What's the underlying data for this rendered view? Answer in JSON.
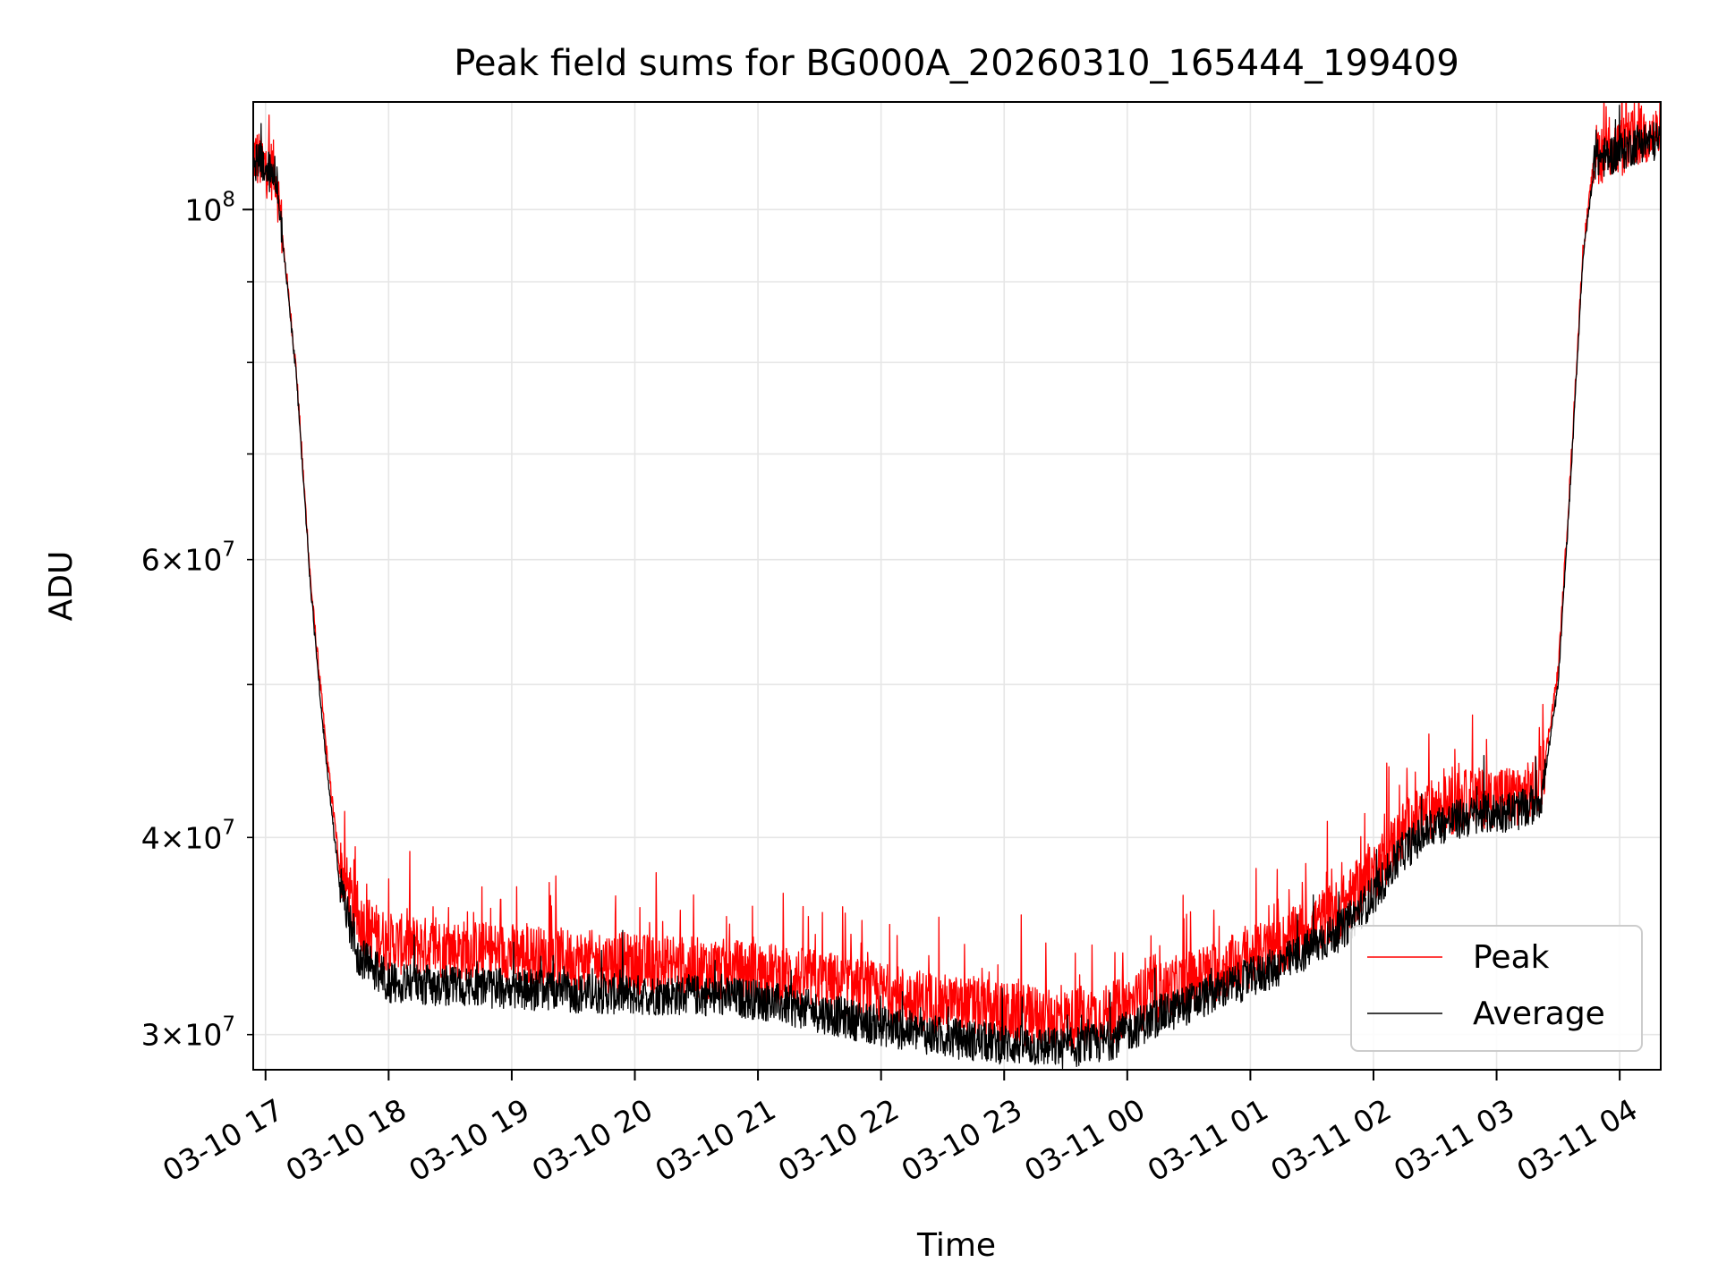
{
  "chart_data": {
    "type": "line",
    "title": "Peak field sums for BG000A_20260310_165444_199409",
    "xlabel": "Time",
    "ylabel": "ADU",
    "yscale": "log",
    "grid": true,
    "legend_position": "lower-right",
    "x_range": [
      "2026-03-10 16:54",
      "2026-03-11 04:20"
    ],
    "ylim": [
      28500000,
      117000000
    ],
    "x_ticks": [
      {
        "value": "2026-03-10 17:00",
        "label": "03-10 17"
      },
      {
        "value": "2026-03-10 18:00",
        "label": "03-10 18"
      },
      {
        "value": "2026-03-10 19:00",
        "label": "03-10 19"
      },
      {
        "value": "2026-03-10 20:00",
        "label": "03-10 20"
      },
      {
        "value": "2026-03-10 21:00",
        "label": "03-10 21"
      },
      {
        "value": "2026-03-10 22:00",
        "label": "03-10 22"
      },
      {
        "value": "2026-03-10 23:00",
        "label": "03-10 23"
      },
      {
        "value": "2026-03-11 00:00",
        "label": "03-11 00"
      },
      {
        "value": "2026-03-11 01:00",
        "label": "03-11 01"
      },
      {
        "value": "2026-03-11 02:00",
        "label": "03-11 02"
      },
      {
        "value": "2026-03-11 03:00",
        "label": "03-11 03"
      },
      {
        "value": "2026-03-11 04:00",
        "label": "03-11 04"
      }
    ],
    "y_ticks_major": [
      {
        "value": 100000000,
        "mantissa": "",
        "exponent": "8"
      }
    ],
    "y_ticks_minor": [
      {
        "value": 30000000,
        "mantissa": "3",
        "exponent": "7"
      },
      {
        "value": 40000000,
        "mantissa": "4",
        "exponent": "7"
      },
      {
        "value": 50000000,
        "mantissa": "",
        "exponent": ""
      },
      {
        "value": 60000000,
        "mantissa": "6",
        "exponent": "7"
      },
      {
        "value": 70000000,
        "mantissa": "",
        "exponent": ""
      },
      {
        "value": 80000000,
        "mantissa": "",
        "exponent": ""
      },
      {
        "value": 90000000,
        "mantissa": "",
        "exponent": ""
      }
    ],
    "series": [
      {
        "name": "Peak",
        "color": "#ff0000",
        "noise": 0.045,
        "spike_rate": 0.06,
        "points": [
          [
            "2026-03-10 16:54",
            108500000
          ],
          [
            "2026-03-10 17:00",
            106500000
          ],
          [
            "2026-03-10 17:05",
            105800000
          ],
          [
            "2026-03-10 17:15",
            79000000
          ],
          [
            "2026-03-10 17:22",
            58000000
          ],
          [
            "2026-03-10 17:30",
            45000000
          ],
          [
            "2026-03-10 17:36",
            38500000
          ],
          [
            "2026-03-10 17:45",
            35500000
          ],
          [
            "2026-03-10 18:00",
            34300000
          ],
          [
            "2026-03-10 18:30",
            34000000
          ],
          [
            "2026-03-10 19:00",
            33800000
          ],
          [
            "2026-03-10 19:30",
            33500000
          ],
          [
            "2026-03-10 20:00",
            33300000
          ],
          [
            "2026-03-10 20:30",
            33100000
          ],
          [
            "2026-03-10 21:00",
            32900000
          ],
          [
            "2026-03-10 21:30",
            32500000
          ],
          [
            "2026-03-10 22:00",
            31900000
          ],
          [
            "2026-03-10 22:30",
            31400000
          ],
          [
            "2026-03-10 23:00",
            31000000
          ],
          [
            "2026-03-10 23:30",
            30700000
          ],
          [
            "2026-03-10 23:50",
            30900000
          ],
          [
            "2026-03-11 00:15",
            31900000
          ],
          [
            "2026-03-11 00:45",
            33000000
          ],
          [
            "2026-03-11 01:15",
            34200000
          ],
          [
            "2026-03-11 01:45",
            36200000
          ],
          [
            "2026-03-11 02:00",
            38000000
          ],
          [
            "2026-03-11 02:15",
            40500000
          ],
          [
            "2026-03-11 02:30",
            41800000
          ],
          [
            "2026-03-11 02:45",
            42300000
          ],
          [
            "2026-03-11 03:00",
            42500000
          ],
          [
            "2026-03-11 03:15",
            42700000
          ],
          [
            "2026-03-11 03:22",
            43500000
          ],
          [
            "2026-03-11 03:30",
            51000000
          ],
          [
            "2026-03-11 03:36",
            68000000
          ],
          [
            "2026-03-11 03:42",
            94000000
          ],
          [
            "2026-03-11 03:48",
            108500000
          ],
          [
            "2026-03-11 04:00",
            109500000
          ],
          [
            "2026-03-11 04:10",
            111500000
          ],
          [
            "2026-03-11 04:20",
            111500000
          ]
        ]
      },
      {
        "name": "Average",
        "color": "#000000",
        "noise": 0.03,
        "spike_rate": 0.02,
        "points": [
          [
            "2026-03-10 16:54",
            108000000
          ],
          [
            "2026-03-10 17:00",
            106000000
          ],
          [
            "2026-03-10 17:05",
            105300000
          ],
          [
            "2026-03-10 17:15",
            78500000
          ],
          [
            "2026-03-10 17:22",
            57500000
          ],
          [
            "2026-03-10 17:30",
            44000000
          ],
          [
            "2026-03-10 17:36",
            37500000
          ],
          [
            "2026-03-10 17:45",
            33700000
          ],
          [
            "2026-03-10 18:00",
            32400000
          ],
          [
            "2026-03-10 18:30",
            32200000
          ],
          [
            "2026-03-10 19:00",
            32100000
          ],
          [
            "2026-03-10 19:30",
            31900000
          ],
          [
            "2026-03-10 20:00",
            31800000
          ],
          [
            "2026-03-10 20:30",
            31800000
          ],
          [
            "2026-03-10 21:00",
            31600000
          ],
          [
            "2026-03-10 21:30",
            31000000
          ],
          [
            "2026-03-10 22:00",
            30400000
          ],
          [
            "2026-03-10 22:30",
            29900000
          ],
          [
            "2026-03-10 23:00",
            29600000
          ],
          [
            "2026-03-10 23:30",
            29400000
          ],
          [
            "2026-03-10 23:50",
            29700000
          ],
          [
            "2026-03-11 00:15",
            30800000
          ],
          [
            "2026-03-11 00:45",
            32000000
          ],
          [
            "2026-03-11 01:15",
            33200000
          ],
          [
            "2026-03-11 01:45",
            35000000
          ],
          [
            "2026-03-11 02:00",
            36800000
          ],
          [
            "2026-03-11 02:15",
            39300000
          ],
          [
            "2026-03-11 02:30",
            40700000
          ],
          [
            "2026-03-11 02:45",
            41200000
          ],
          [
            "2026-03-11 03:00",
            41500000
          ],
          [
            "2026-03-11 03:15",
            41700000
          ],
          [
            "2026-03-11 03:22",
            42500000
          ],
          [
            "2026-03-11 03:30",
            50000000
          ],
          [
            "2026-03-11 03:36",
            67000000
          ],
          [
            "2026-03-11 03:42",
            93000000
          ],
          [
            "2026-03-11 03:48",
            107500000
          ],
          [
            "2026-03-11 04:00",
            108800000
          ],
          [
            "2026-03-11 04:10",
            110500000
          ],
          [
            "2026-03-11 04:20",
            110500000
          ]
        ]
      }
    ]
  }
}
